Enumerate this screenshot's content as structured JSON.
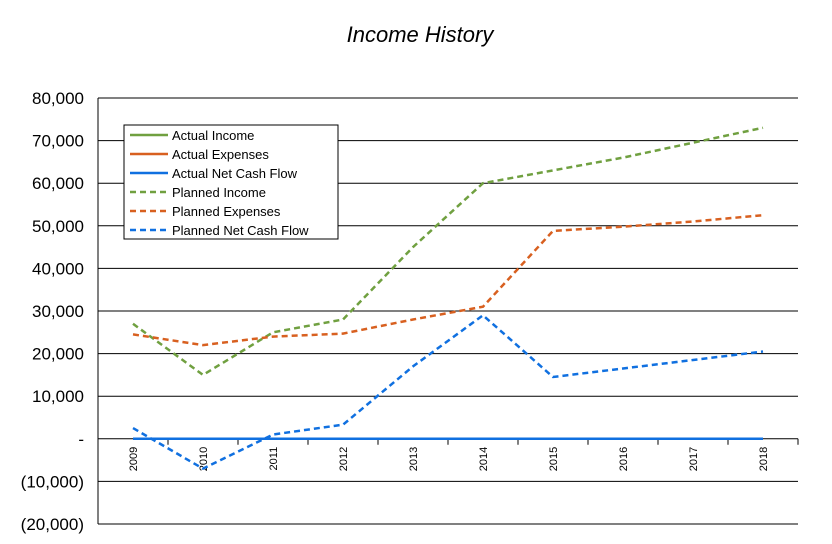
{
  "chart_data": {
    "type": "line",
    "title": "Income History",
    "xlabel": "",
    "ylabel": "",
    "categories": [
      "2009",
      "2010",
      "2011",
      "2012",
      "2013",
      "2014",
      "2015",
      "2016",
      "2017",
      "2018"
    ],
    "ylim": [
      -20000,
      80000
    ],
    "yticks": [
      80000,
      70000,
      60000,
      50000,
      40000,
      30000,
      20000,
      10000,
      0,
      -10000,
      -20000
    ],
    "ytick_labels": [
      "80,000",
      "70,000",
      "60,000",
      "50,000",
      "40,000",
      "30,000",
      "20,000",
      "10,000",
      "-",
      "(10,000)",
      "(20,000)"
    ],
    "grid": true,
    "legend_position": "top-left",
    "series": [
      {
        "name": "Actual Income",
        "color": "#70a040",
        "style": "solid",
        "values": [
          null,
          null,
          null,
          null,
          null,
          null,
          null,
          null,
          null,
          null
        ]
      },
      {
        "name": "Actual Expenses",
        "color": "#d86020",
        "style": "solid",
        "values": [
          null,
          null,
          null,
          null,
          null,
          null,
          null,
          null,
          null,
          null
        ]
      },
      {
        "name": "Actual Net Cash Flow",
        "color": "#1070e0",
        "style": "solid",
        "values": [
          0,
          0,
          0,
          0,
          0,
          0,
          0,
          0,
          0,
          0
        ]
      },
      {
        "name": "Planned Income",
        "color": "#70a040",
        "style": "dashed",
        "values": [
          27000,
          15000,
          25000,
          28000,
          45000,
          60000,
          63000,
          66000,
          69500,
          73000
        ]
      },
      {
        "name": "Planned Expenses",
        "color": "#d86020",
        "style": "dashed",
        "values": [
          24500,
          22000,
          24000,
          24700,
          28000,
          31000,
          48800,
          49800,
          51000,
          52500
        ]
      },
      {
        "name": "Planned Net Cash Flow",
        "color": "#1070e0",
        "style": "dashed",
        "values": [
          2500,
          -7000,
          1000,
          3300,
          17000,
          29000,
          14500,
          16500,
          18500,
          20500
        ]
      }
    ]
  }
}
